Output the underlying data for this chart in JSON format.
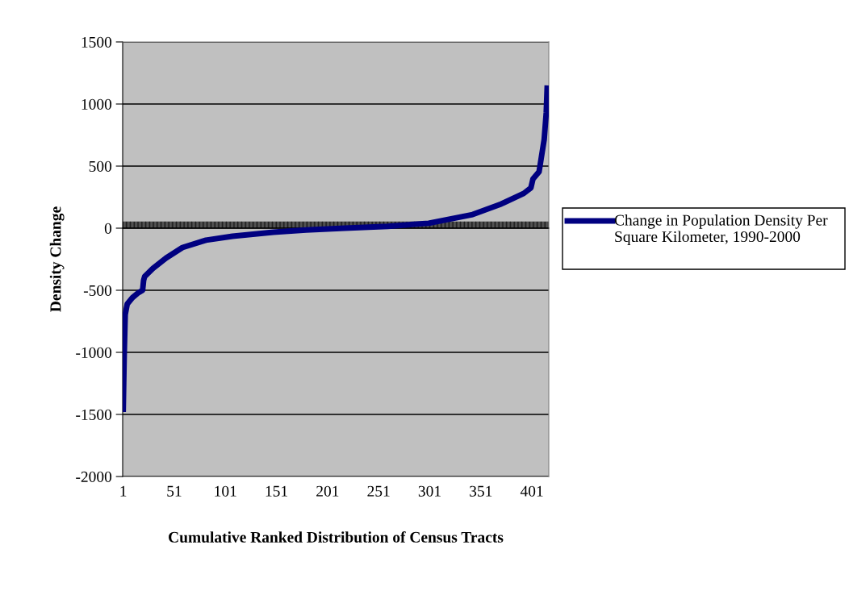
{
  "chart_data": {
    "type": "line",
    "xlabel": "Cumulative Ranked Distribution of Census Tracts",
    "ylabel": "Density Change",
    "x": [
      1,
      2,
      3,
      5,
      10,
      16,
      20,
      21,
      22,
      30,
      43,
      59,
      82,
      108,
      148,
      180,
      218,
      260,
      300,
      343,
      371,
      393,
      400,
      402,
      408,
      410,
      413,
      415,
      416
    ],
    "series": [
      {
        "name": "Change in Population Density Per Square Kilometer, 1990-2000",
        "color": "#000080",
        "values": [
          -1480,
          -1020,
          -695,
          -610,
          -560,
          -519,
          -500,
          -420,
          -390,
          -325,
          -240,
          -156,
          -97,
          -65,
          -32,
          -15,
          0,
          15,
          40,
          110,
          195,
          280,
          325,
          396,
          455,
          558,
          714,
          929,
          1150
        ]
      }
    ],
    "xlim": [
      0.5,
      417.5
    ],
    "xticks": [
      1,
      51,
      101,
      151,
      201,
      251,
      301,
      351,
      401
    ],
    "ylim": [
      -2000,
      1500
    ],
    "yticks": [
      -2000,
      -1500,
      -1000,
      -500,
      0,
      500,
      1000,
      1500
    ],
    "grid": "y",
    "legend": "right",
    "marker": "none",
    "line_style": "solid"
  }
}
